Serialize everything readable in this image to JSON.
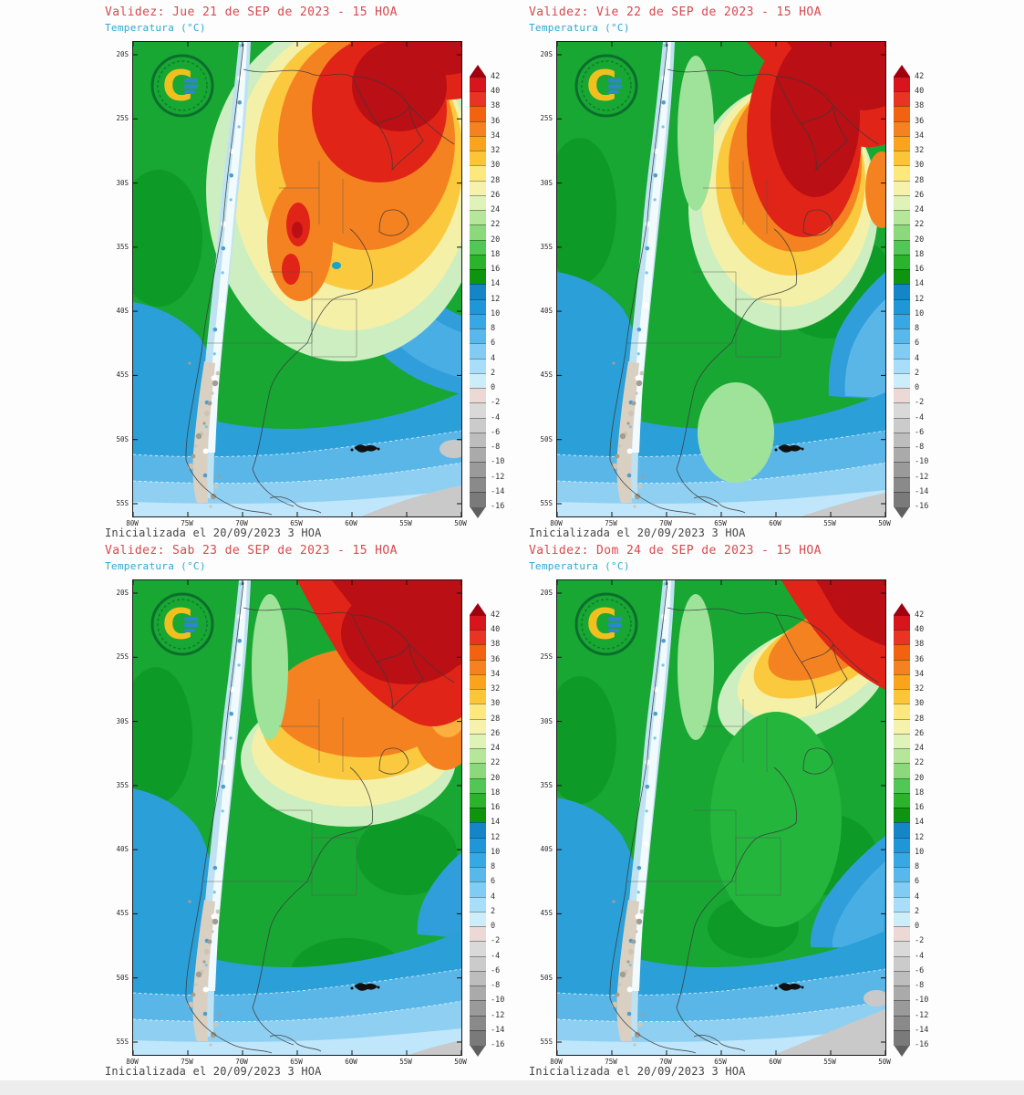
{
  "page": {
    "background": "#fdfdfd"
  },
  "colors": {
    "title_red": "#d8494f",
    "subtitle_cyan": "#2ba8d2",
    "footer_gray": "#454545",
    "map_frame": "#1a1a1a",
    "base_green": "#18a733",
    "ocean_blue": "#2b9fd8",
    "hot_red": "#e02417",
    "hot_dark_red": "#ba0f14",
    "cold_gray": "#c9c9c9"
  },
  "logo": {
    "letter": "C",
    "ring_color": "#0b6e2c",
    "letter_color": "#f2c01e",
    "accent_color": "#2f86d0"
  },
  "axes": {
    "latitude_labels": [
      "20S",
      "25S",
      "30S",
      "35S",
      "40S",
      "45S",
      "50S",
      "55S"
    ],
    "longitude_labels": [
      "80W",
      "75W",
      "70W",
      "65W",
      "60W",
      "55W",
      "50W"
    ]
  },
  "colorbar": {
    "tick_labels": [
      "42",
      "40",
      "38",
      "36",
      "34",
      "32",
      "30",
      "28",
      "26",
      "24",
      "22",
      "20",
      "18",
      "16",
      "14",
      "12",
      "10",
      "8",
      "6",
      "4",
      "2",
      "0",
      "-2",
      "-4",
      "-6",
      "-8",
      "-10",
      "-12",
      "-14",
      "-16"
    ],
    "cell_colors_top_to_bottom": [
      "#d8151c",
      "#e93423",
      "#f2620f",
      "#f58220",
      "#faa41d",
      "#fcc437",
      "#fde87e",
      "#f6f2ab",
      "#dff2b8",
      "#b5e69a",
      "#8cd97c",
      "#52c755",
      "#2bb32b",
      "#0f9410",
      "#1486c8",
      "#1e96d8",
      "#38a8e4",
      "#58b8ec",
      "#80ccf4",
      "#a8defa",
      "#cceefb",
      "#ecd9d5",
      "#d9d9d9",
      "#cbcbcb",
      "#bdbdbd",
      "#aaaaaa",
      "#9a9a9a",
      "#8a8a8a",
      "#7a7a7a"
    ],
    "tip_top_color": "#a00010",
    "tip_bottom_color": "#5f5f5f"
  },
  "panels": [
    {
      "validity_label": "Validez: Jue 21 de SEP de 2023 - 15 HOA",
      "variable_label": "Temperatura (°C)",
      "init_label": "Inicializada el 20/09/2023 3 HOA"
    },
    {
      "validity_label": "Validez: Vie 22 de SEP de 2023 - 15 HOA",
      "variable_label": "Temperatura (°C)",
      "init_label": "Inicializada el 20/09/2023 3 HOA"
    },
    {
      "validity_label": "Validez: Sab 23 de SEP de 2023 - 15 HOA",
      "variable_label": "Temperatura (°C)",
      "init_label": "Inicializada el 20/09/2023 3 HOA"
    },
    {
      "validity_label": "Validez: Dom 24 de SEP de 2023 - 15 HOA",
      "variable_label": "Temperatura (°C)",
      "init_label": "Inicializada el 20/09/2023 3 HOA"
    }
  ]
}
